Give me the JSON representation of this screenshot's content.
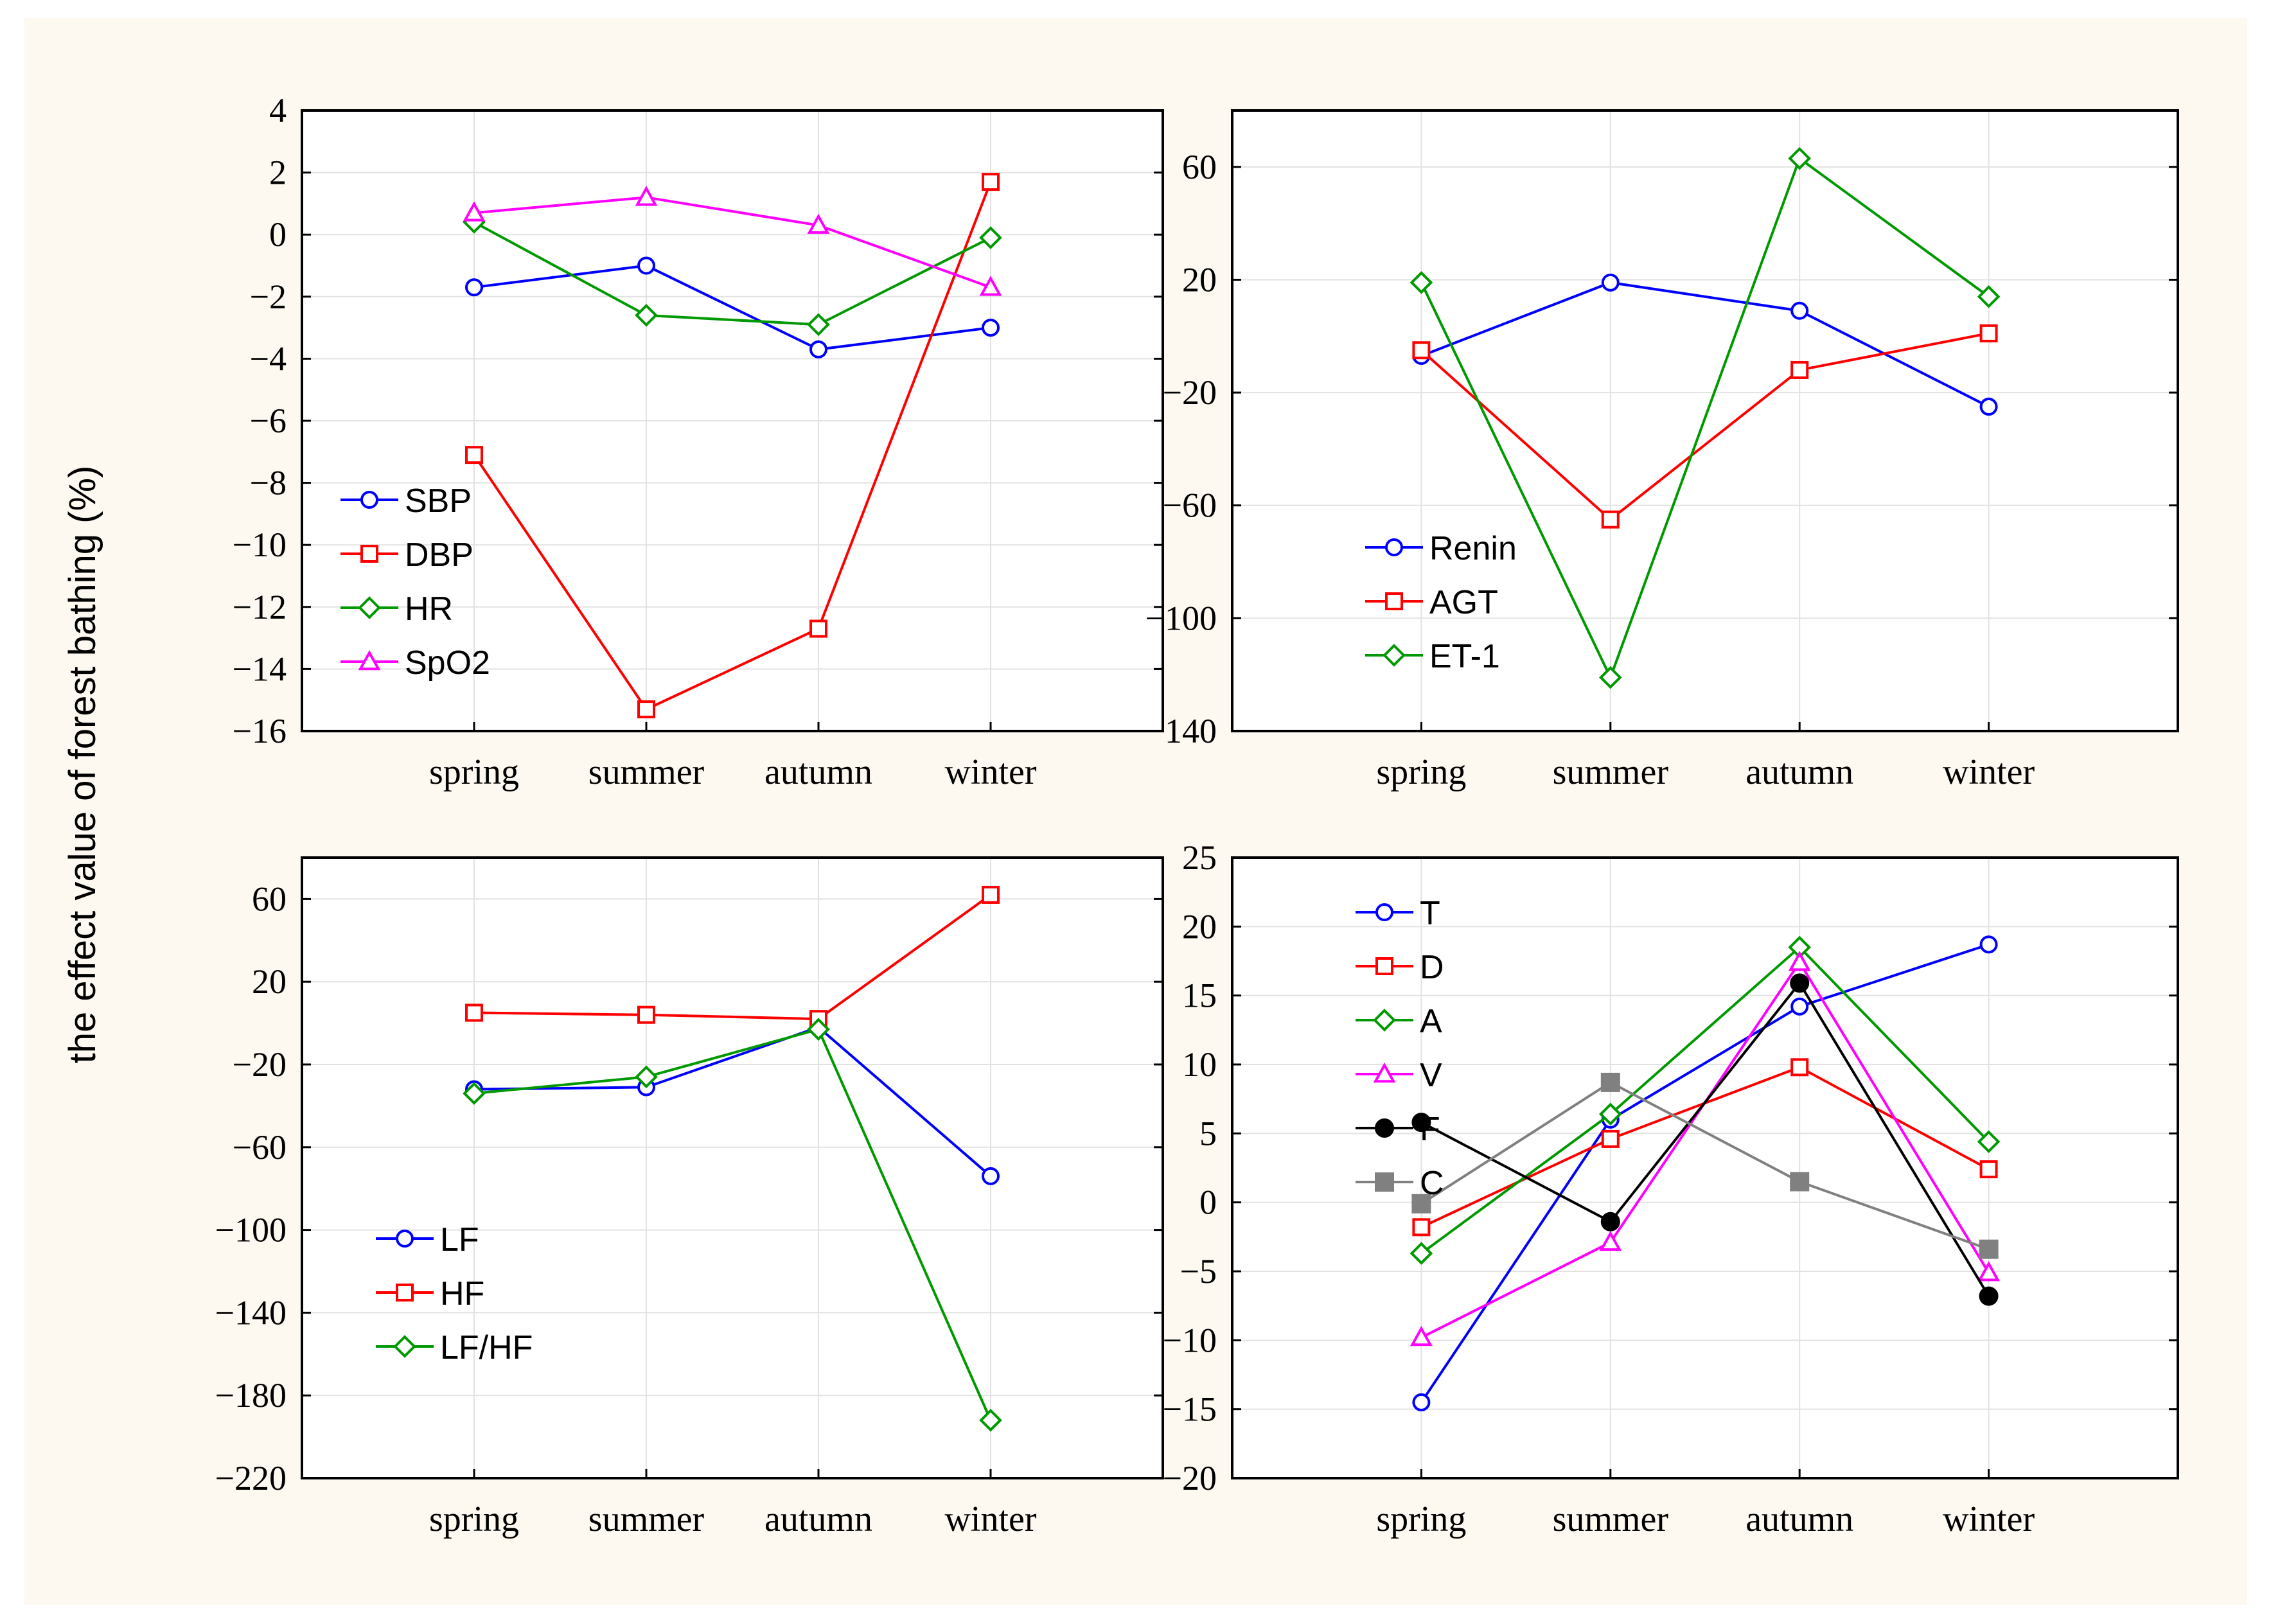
{
  "figure": {
    "background": "#fdf9f0",
    "ylabel": "the effect value of forest bathing (%)"
  },
  "chart_data": [
    {
      "type": "line",
      "categories": [
        "spring",
        "summer",
        "autumn",
        "winter"
      ],
      "ylim": [
        -16,
        4
      ],
      "yticks": [
        4,
        2,
        0,
        -2,
        -4,
        -6,
        -8,
        -10,
        -12,
        -14,
        -16
      ],
      "grid": true,
      "legend_position": "lower-left",
      "series": [
        {
          "name": "SBP",
          "color": "#0000ff",
          "marker": "circle",
          "values": [
            -1.7,
            -1.0,
            -3.7,
            -3.0
          ]
        },
        {
          "name": "DBP",
          "color": "#ff0000",
          "marker": "square",
          "values": [
            -7.1,
            -15.3,
            -12.7,
            1.7
          ]
        },
        {
          "name": "HR",
          "color": "#009900",
          "marker": "diamond",
          "values": [
            0.4,
            -2.6,
            -2.9,
            -0.1
          ]
        },
        {
          "name": "SpO2",
          "color": "#ff00ff",
          "marker": "triangle",
          "values": [
            0.7,
            1.2,
            0.3,
            -1.7
          ]
        }
      ]
    },
    {
      "type": "line",
      "categories": [
        "spring",
        "summer",
        "autumn",
        "winter"
      ],
      "ylim": [
        -140,
        80
      ],
      "yticks": [
        60,
        20,
        -20,
        -60,
        -100,
        -140
      ],
      "grid": true,
      "legend_position": "lower-left",
      "series": [
        {
          "name": "Renin",
          "color": "#0000ff",
          "marker": "circle",
          "values": [
            -7,
            19,
            9,
            -25
          ]
        },
        {
          "name": "AGT",
          "color": "#ff0000",
          "marker": "square",
          "values": [
            -5,
            -65,
            -12,
            1
          ]
        },
        {
          "name": "ET-1",
          "color": "#009900",
          "marker": "diamond",
          "values": [
            19,
            -121,
            63,
            14
          ]
        }
      ]
    },
    {
      "type": "line",
      "categories": [
        "spring",
        "summer",
        "autumn",
        "winter"
      ],
      "ylim": [
        -220,
        80
      ],
      "yticks": [
        60,
        20,
        -20,
        -60,
        -100,
        -140,
        -180,
        -220
      ],
      "grid": true,
      "legend_position": "lower-left",
      "series": [
        {
          "name": "LF",
          "color": "#0000ff",
          "marker": "circle",
          "values": [
            -32,
            -31,
            -2,
            -74
          ]
        },
        {
          "name": "HF",
          "color": "#ff0000",
          "marker": "square",
          "values": [
            5,
            4,
            2,
            62
          ]
        },
        {
          "name": "LF/HF",
          "color": "#009900",
          "marker": "diamond",
          "values": [
            -34,
            -26,
            -3,
            -192
          ]
        }
      ]
    },
    {
      "type": "line",
      "categories": [
        "spring",
        "summer",
        "autumn",
        "winter"
      ],
      "ylim": [
        -20,
        25
      ],
      "yticks": [
        25,
        20,
        15,
        10,
        5,
        0,
        -5,
        -10,
        -15,
        -20
      ],
      "grid": true,
      "legend_position": "upper-left",
      "series": [
        {
          "name": "T",
          "color": "#0000ff",
          "marker": "circle",
          "values": [
            -14.5,
            6.0,
            14.2,
            18.7
          ]
        },
        {
          "name": "D",
          "color": "#ff0000",
          "marker": "square",
          "values": [
            -1.8,
            4.6,
            9.8,
            2.4
          ]
        },
        {
          "name": "A",
          "color": "#009900",
          "marker": "diamond",
          "values": [
            -3.7,
            6.4,
            18.5,
            4.4
          ]
        },
        {
          "name": "V",
          "color": "#ff00ff",
          "marker": "triangle",
          "values": [
            -9.8,
            -2.9,
            17.4,
            -5.1
          ]
        },
        {
          "name": "F",
          "color": "#000000",
          "marker": "filled-circle",
          "values": [
            5.8,
            -1.4,
            15.9,
            -6.8
          ]
        },
        {
          "name": "C",
          "color": "#808080",
          "marker": "filled-square",
          "values": [
            -0.1,
            8.7,
            1.5,
            -3.4
          ]
        }
      ]
    }
  ]
}
